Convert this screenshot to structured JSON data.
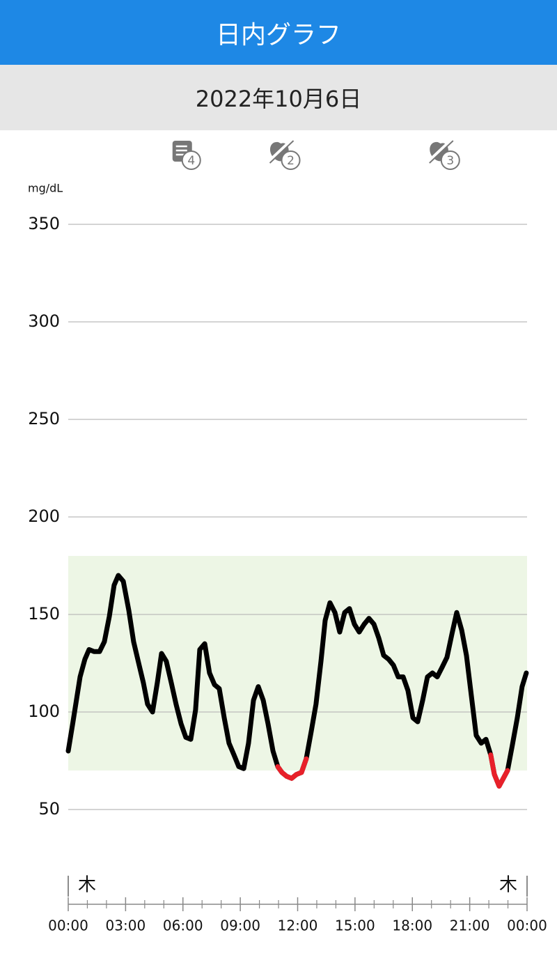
{
  "header": {
    "title": "日内グラフ",
    "date": "2022年10月6日"
  },
  "chart_data": {
    "type": "line",
    "y_unit": "mg/dL",
    "x": [
      0,
      0.25,
      0.62,
      0.87,
      1.09,
      1.35,
      1.64,
      1.89,
      2.15,
      2.4,
      2.62,
      2.88,
      3.17,
      3.42,
      3.71,
      3.93,
      4.15,
      4.41,
      4.66,
      4.88,
      5.13,
      5.39,
      5.64,
      5.9,
      6.15,
      6.41,
      6.66,
      6.88,
      7.14,
      7.39,
      7.65,
      7.9,
      8.16,
      8.41,
      8.67,
      8.92,
      9.18,
      9.43,
      9.69,
      9.94,
      10.2,
      10.45,
      10.71,
      10.96,
      11.18,
      11.43,
      11.69,
      11.94,
      12.2,
      12.45,
      12.71,
      12.96,
      13.22,
      13.44,
      13.69,
      13.95,
      14.2,
      14.46,
      14.71,
      14.97,
      15.22,
      15.48,
      15.73,
      15.99,
      16.24,
      16.5,
      16.76,
      17.01,
      17.26,
      17.52,
      17.77,
      18.03,
      18.28,
      18.54,
      18.79,
      19.05,
      19.3,
      19.56,
      19.81,
      20.07,
      20.32,
      20.58,
      20.83,
      21.09,
      21.34,
      21.6,
      21.85,
      22.1,
      22.29,
      22.54,
      22.76,
      22.98,
      23.23,
      23.49,
      23.74,
      23.96
    ],
    "series": [
      {
        "color": "#000000",
        "low_color": "#e8202a",
        "values": [
          80,
          95,
          118,
          127,
          132,
          131,
          131,
          136,
          149,
          165,
          170,
          167,
          152,
          136,
          124,
          115,
          104,
          100,
          115,
          130,
          126,
          115,
          104,
          94,
          87,
          86,
          101,
          132,
          135,
          120,
          114,
          112,
          97,
          84,
          78,
          72,
          71,
          84,
          106,
          113,
          106,
          94,
          80,
          72,
          69,
          67,
          66,
          68,
          69,
          76,
          90,
          104,
          126,
          147,
          156,
          151,
          141,
          151,
          153,
          145,
          141,
          145,
          148,
          145,
          138,
          129,
          127,
          124,
          118,
          118,
          111,
          97,
          95,
          106,
          118,
          120,
          118,
          123,
          128,
          140,
          151,
          142,
          129,
          108,
          88,
          84,
          86,
          78,
          68,
          62,
          66,
          70,
          83,
          97,
          113,
          120
        ]
      }
    ],
    "xlim": [
      0,
      24
    ],
    "ylim": [
      30,
      360
    ],
    "xticks": [
      {
        "value": 0,
        "label": "00:00"
      },
      {
        "value": 3,
        "label": "03:00"
      },
      {
        "value": 6,
        "label": "06:00"
      },
      {
        "value": 9,
        "label": "09:00"
      },
      {
        "value": 12,
        "label": "12:00"
      },
      {
        "value": 15,
        "label": "15:00"
      },
      {
        "value": 18,
        "label": "18:00"
      },
      {
        "value": 21,
        "label": "21:00"
      },
      {
        "value": 24,
        "label": "00:00"
      }
    ],
    "xminorticks": [
      1,
      2,
      4,
      5,
      7,
      8,
      10,
      11,
      13,
      14,
      16,
      17,
      19,
      20,
      22,
      23
    ],
    "yticks": [
      50,
      100,
      150,
      200,
      250,
      300,
      350
    ],
    "grid": true,
    "target_range": [
      70,
      180
    ],
    "target_color": "#edf6e5",
    "day_labels": [
      "木",
      "木"
    ],
    "events": [
      {
        "kind": "note",
        "time": 6,
        "count": "4"
      },
      {
        "kind": "meal",
        "time": 11.2,
        "count": "2"
      },
      {
        "kind": "meal",
        "time": 19.55,
        "count": "3"
      }
    ]
  }
}
